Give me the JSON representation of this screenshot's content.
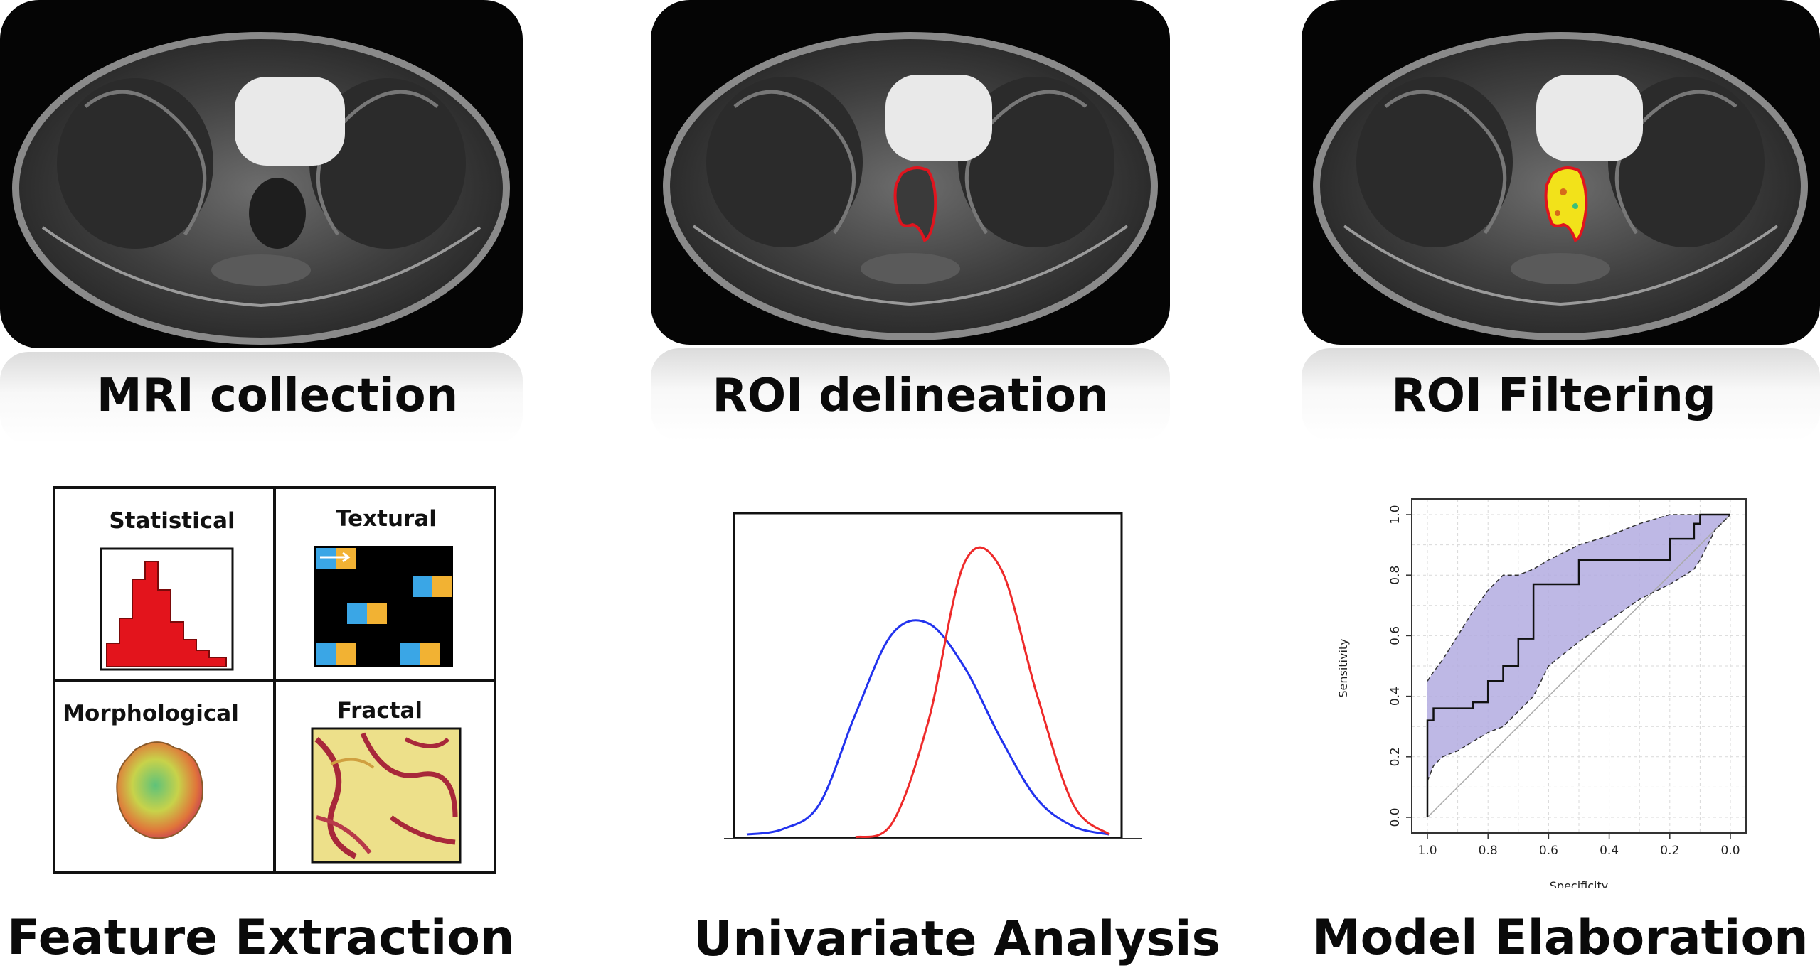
{
  "steps": [
    {
      "label": "MRI collection"
    },
    {
      "label": "ROI delineation"
    },
    {
      "label": "ROI Filtering"
    },
    {
      "label": "Feature Extraction"
    },
    {
      "label": "Univariate Analysis"
    },
    {
      "label": "Model Elaboration"
    }
  ],
  "feature_types": [
    "Statistical",
    "Textural",
    "Morphological",
    "Fractal"
  ],
  "roc": {
    "xlabel": "Specificity",
    "ylabel": "Sensitivity",
    "x_ticks": [
      "1.0",
      "0.8",
      "0.6",
      "0.4",
      "0.2",
      "0.0"
    ],
    "y_ticks": [
      "0.0",
      "0.2",
      "0.4",
      "0.6",
      "0.8",
      "1.0"
    ]
  },
  "colors": {
    "roi_outline": "#e0141e",
    "roi_fill": "#f2e21a",
    "histogram": "#e3141c",
    "texture_blue": "#3aa6e6",
    "texture_orange": "#f2b233",
    "curve_blue": "#2233ee",
    "curve_red": "#ee2a2a",
    "ci_band": "#b3abe0"
  },
  "chart_data": [
    {
      "type": "line",
      "title": "",
      "xlabel": "",
      "ylabel": "",
      "x": [
        0.0,
        0.1,
        0.2,
        0.3,
        0.4,
        0.5,
        0.6,
        0.7,
        0.8,
        0.9,
        1.0
      ],
      "series": [
        {
          "values": [
            0.01,
            0.03,
            0.12,
            0.45,
            0.74,
            0.78,
            0.62,
            0.36,
            0.14,
            0.04,
            0.01
          ]
        },
        {
          "values": [
            0.0,
            0.0,
            0.0,
            0.0,
            0.05,
            0.42,
            1.0,
            0.98,
            0.52,
            0.12,
            0.01
          ]
        }
      ]
    },
    {
      "type": "line",
      "title": "",
      "xlabel": "Specificity",
      "ylabel": "Sensitivity",
      "xlim": [
        1.0,
        0.0
      ],
      "ylim": [
        0.0,
        1.0
      ],
      "grid": true,
      "x": [
        1.0,
        0.98,
        0.95,
        0.9,
        0.85,
        0.8,
        0.75,
        0.7,
        0.65,
        0.6,
        0.5,
        0.4,
        0.3,
        0.2,
        0.15,
        0.12,
        0.1,
        0.05,
        0.0
      ],
      "series": [
        {
          "values": [
            0.27,
            0.32,
            0.36,
            0.36,
            0.36,
            0.38,
            0.45,
            0.5,
            0.59,
            0.77,
            0.77,
            0.85,
            0.85,
            0.85,
            0.92,
            0.92,
            0.97,
            1.0,
            1.0
          ]
        },
        {
          "values": [
            0.45,
            0.48,
            0.52,
            0.6,
            0.68,
            0.75,
            0.8,
            0.8,
            0.82,
            0.85,
            0.9,
            0.93,
            0.97,
            1.0,
            1.0,
            1.0,
            1.0,
            1.0,
            1.0
          ]
        },
        {
          "values": [
            0.12,
            0.17,
            0.2,
            0.22,
            0.25,
            0.28,
            0.3,
            0.35,
            0.4,
            0.5,
            0.58,
            0.65,
            0.72,
            0.77,
            0.8,
            0.82,
            0.85,
            0.95,
            1.0
          ]
        }
      ]
    }
  ]
}
